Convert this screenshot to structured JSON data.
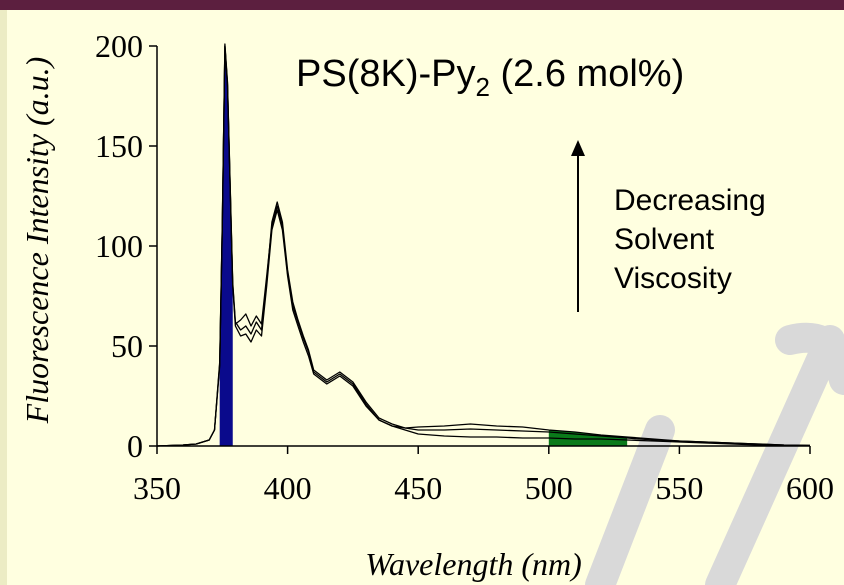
{
  "chart_data": {
    "type": "line",
    "title": "PS(8K)-Py",
    "title_subscript": "2",
    "title_suffix": " (2.6 mol%)",
    "xlabel": "Wavelength (nm)",
    "ylabel": "Fluorescence Intensity (a.u.)",
    "xlim": [
      350,
      600
    ],
    "ylim": [
      0,
      200
    ],
    "x_ticks": [
      "350",
      "400",
      "450",
      "500",
      "550",
      "600"
    ],
    "y_ticks": [
      "0",
      "50",
      "100",
      "150",
      "200"
    ],
    "annotation": [
      "Decreasing",
      "Solvent",
      "Viscosity"
    ],
    "colors": {
      "monomer_band": "#0a0a8c",
      "excimer_band": "#0a7a1a",
      "line": "#000000",
      "watermark": "#d9d9d9"
    },
    "series": [
      {
        "x": [
          350,
          360,
          365,
          370,
          372,
          374,
          375,
          376,
          377,
          378,
          379,
          380,
          382,
          384,
          386,
          388,
          390,
          392,
          394,
          396,
          398,
          400,
          402,
          404,
          406,
          408,
          410,
          415,
          420,
          425,
          430,
          435,
          440,
          445,
          450,
          460,
          470,
          480,
          490,
          500,
          510,
          520,
          530,
          540,
          550,
          560,
          570,
          580,
          590,
          600
        ],
        "values": [
          0,
          0.5,
          1,
          3,
          8,
          40,
          110,
          200,
          180,
          130,
          80,
          60,
          55,
          56,
          52,
          58,
          55,
          80,
          108,
          118,
          108,
          85,
          68,
          60,
          52,
          45,
          36,
          31,
          35,
          30,
          20,
          13,
          10,
          8,
          6,
          5,
          4.5,
          4.5,
          4,
          4,
          3.5,
          3.5,
          3,
          2.5,
          2,
          1.5,
          1,
          0.5,
          0.3,
          0.2
        ]
      },
      {
        "x": [
          350,
          360,
          365,
          370,
          372,
          374,
          375,
          376,
          377,
          378,
          379,
          380,
          382,
          384,
          386,
          388,
          390,
          392,
          394,
          396,
          398,
          400,
          402,
          404,
          406,
          408,
          410,
          415,
          420,
          425,
          430,
          435,
          440,
          445,
          450,
          460,
          470,
          480,
          490,
          500,
          510,
          520,
          530,
          540,
          550,
          560,
          570,
          580,
          590,
          600
        ],
        "values": [
          0,
          0.5,
          1,
          3,
          8,
          42,
          112,
          201,
          182,
          132,
          82,
          62,
          58,
          60,
          56,
          62,
          58,
          83,
          112,
          122,
          112,
          88,
          72,
          63,
          55,
          48,
          38,
          33,
          37,
          32,
          22,
          14,
          11,
          9,
          8,
          8,
          8.5,
          8,
          7.5,
          7,
          6,
          5,
          4,
          3,
          2.5,
          2,
          1.5,
          1,
          0.5,
          0.3
        ]
      },
      {
        "x": [
          350,
          360,
          365,
          370,
          372,
          374,
          375,
          376,
          377,
          378,
          379,
          380,
          382,
          384,
          386,
          388,
          390,
          392,
          394,
          396,
          398,
          400,
          402,
          404,
          406,
          408,
          410,
          415,
          420,
          425,
          430,
          435,
          440,
          445,
          450,
          460,
          470,
          480,
          490,
          500,
          510,
          520,
          530,
          540,
          550,
          560,
          570,
          580,
          590,
          600
        ],
        "values": [
          0,
          0.5,
          1,
          3,
          8,
          41,
          111,
          200,
          181,
          131,
          81,
          61,
          63,
          66,
          60,
          65,
          61,
          85,
          110,
          120,
          110,
          86,
          70,
          62,
          54,
          47,
          37,
          32,
          36,
          31,
          21,
          13,
          10,
          9,
          9.5,
          10,
          11,
          10,
          9.5,
          8,
          7,
          5.5,
          4.5,
          3.5,
          2.5,
          2,
          1.5,
          1,
          0.5,
          0.3
        ]
      }
    ]
  }
}
